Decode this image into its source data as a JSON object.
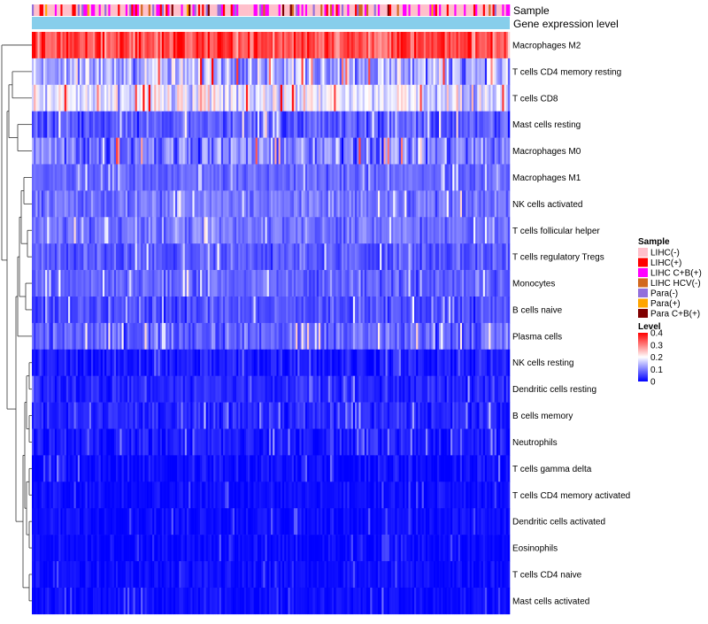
{
  "chart_data": {
    "type": "heatmap",
    "title": "",
    "annotation_tracks": [
      "Sample",
      "Gene expression level"
    ],
    "rows": [
      {
        "name": "Macrophages M2",
        "mean": 0.34,
        "spread": 0.07
      },
      {
        "name": "T cells CD4 memory resting",
        "mean": 0.14,
        "spread": 0.08
      },
      {
        "name": "T cells CD8",
        "mean": 0.18,
        "spread": 0.08
      },
      {
        "name": "Mast cells resting",
        "mean": 0.07,
        "spread": 0.05
      },
      {
        "name": "Macrophages M0",
        "mean": 0.1,
        "spread": 0.08
      },
      {
        "name": "Macrophages M1",
        "mean": 0.08,
        "spread": 0.03
      },
      {
        "name": "NK cells activated",
        "mean": 0.09,
        "spread": 0.04
      },
      {
        "name": "T cells follicular helper",
        "mean": 0.09,
        "spread": 0.04
      },
      {
        "name": "T cells regulatory  Tregs",
        "mean": 0.07,
        "spread": 0.04
      },
      {
        "name": "Monocytes",
        "mean": 0.08,
        "spread": 0.04
      },
      {
        "name": "B cells naive",
        "mean": 0.06,
        "spread": 0.04
      },
      {
        "name": "Plasma cells",
        "mean": 0.08,
        "spread": 0.05
      },
      {
        "name": "NK cells resting",
        "mean": 0.02,
        "spread": 0.03
      },
      {
        "name": "Dendritic cells resting",
        "mean": 0.03,
        "spread": 0.03
      },
      {
        "name": "B cells memory",
        "mean": 0.03,
        "spread": 0.03
      },
      {
        "name": "Neutrophils",
        "mean": 0.02,
        "spread": 0.03
      },
      {
        "name": "T cells gamma delta",
        "mean": 0.01,
        "spread": 0.03
      },
      {
        "name": "T cells CD4 memory activated",
        "mean": 0.01,
        "spread": 0.02
      },
      {
        "name": "Dendritic cells activated",
        "mean": 0.01,
        "spread": 0.02
      },
      {
        "name": "Eosinophils",
        "mean": 0.005,
        "spread": 0.02
      },
      {
        "name": "T cells CD4 naive",
        "mean": 0.01,
        "spread": 0.02
      },
      {
        "name": "Mast cells activated",
        "mean": 0.01,
        "spread": 0.02
      }
    ],
    "n_samples": 250,
    "sample_groups": [
      {
        "name": "LIHC(-)",
        "color": "#ffc0cb",
        "share": 0.58
      },
      {
        "name": "LIHC(+)",
        "color": "#ff0000",
        "share": 0.07
      },
      {
        "name": "LIHC C+B(+)",
        "color": "#ff00ff",
        "share": 0.2
      },
      {
        "name": "LIHC HCV(-)",
        "color": "#d2691e",
        "share": 0.03
      },
      {
        "name": "Para(-)",
        "color": "#9370db",
        "share": 0.08
      },
      {
        "name": "Para(+)",
        "color": "#ffa500",
        "share": 0.02
      },
      {
        "name": "Para C+B(+)",
        "color": "#800000",
        "share": 0.02
      }
    ],
    "gene_expression_color": "#87ceeb",
    "legends": {
      "sample_title": "Sample",
      "level_title": "Level",
      "level_ticks": [
        "0.4",
        "0.3",
        "0.2",
        "0.1",
        "0"
      ],
      "level_range": [
        0,
        0.4
      ]
    },
    "color_scale": {
      "low": "#0000ff",
      "mid": "#ffffff",
      "high": "#ff0000",
      "mid_value": 0.2
    }
  }
}
